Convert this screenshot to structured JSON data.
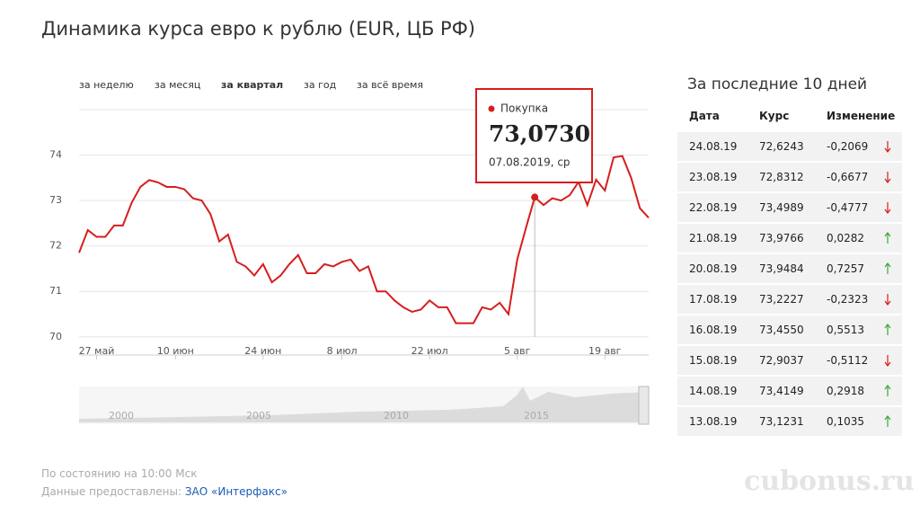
{
  "header": {
    "title": "Динамика курса евро к рублю (EUR, ЦБ РФ)"
  },
  "tabs": {
    "items": [
      "за неделю",
      "за месяц",
      "за квартал",
      "за год",
      "за всё время"
    ],
    "active": 2
  },
  "chart_data": {
    "type": "line",
    "categories": [
      null,
      null,
      "27 май",
      null,
      null,
      null,
      null,
      null,
      null,
      null,
      null,
      "10 июн",
      null,
      null,
      null,
      null,
      null,
      null,
      null,
      null,
      null,
      "24 июн",
      null,
      null,
      null,
      null,
      null,
      null,
      null,
      null,
      "8 июл",
      null,
      null,
      null,
      null,
      null,
      null,
      null,
      null,
      null,
      "22 июл",
      null,
      null,
      null,
      null,
      null,
      null,
      null,
      null,
      null,
      "5 авг",
      null,
      null,
      null,
      null,
      null,
      null,
      null,
      null,
      null,
      "19 авг",
      null,
      null,
      null,
      null,
      null
    ],
    "series": [
      {
        "name": "Покупка",
        "color": "#d61e1e",
        "values": [
          71.85,
          72.35,
          72.2,
          72.2,
          72.45,
          72.45,
          72.95,
          73.3,
          73.45,
          73.4,
          73.3,
          73.3,
          73.25,
          73.05,
          73.0,
          72.7,
          72.1,
          72.25,
          71.65,
          71.55,
          71.35,
          71.6,
          71.2,
          71.35,
          71.6,
          71.8,
          71.4,
          71.4,
          71.6,
          71.55,
          71.65,
          71.7,
          71.45,
          71.55,
          71.0,
          71.0,
          70.8,
          70.65,
          70.55,
          70.6,
          70.8,
          70.65,
          70.65,
          70.3,
          70.3,
          70.3,
          70.65,
          70.6,
          70.75,
          70.5,
          71.7,
          72.4,
          73.073,
          72.9,
          73.05,
          73.0,
          73.12,
          73.41,
          72.9,
          73.46,
          73.22,
          73.95,
          73.98,
          73.5,
          72.83,
          72.62
        ]
      }
    ],
    "ylim": [
      69.6,
      75.0
    ],
    "yticks": [
      70,
      71,
      72,
      73,
      74
    ],
    "grid": true,
    "tooltip": {
      "value": 73.073,
      "value_label": "73,0730",
      "date": "07.08.2019, ср"
    },
    "navigator": {
      "labels": [
        "2000",
        "2005",
        "2010",
        "2015"
      ]
    }
  },
  "table": {
    "title": "За последние 10 дней",
    "columns": [
      "Дата",
      "Курс",
      "Изменение"
    ],
    "rows": [
      [
        "24.08.19",
        "72,6243",
        "-0,2069"
      ],
      [
        "23.08.19",
        "72,8312",
        "-0,6677"
      ],
      [
        "22.08.19",
        "73,4989",
        "-0,4777"
      ],
      [
        "21.08.19",
        "73,9766",
        "0,0282"
      ],
      [
        "20.08.19",
        "73,9484",
        "0,7257"
      ],
      [
        "17.08.19",
        "73,2227",
        "-0,2323"
      ],
      [
        "16.08.19",
        "73,4550",
        "0,5513"
      ],
      [
        "15.08.19",
        "72,9037",
        "-0,5112"
      ],
      [
        "14.08.19",
        "73,4149",
        "0,2918"
      ],
      [
        "13.08.19",
        "73,1231",
        "0,1035"
      ]
    ]
  },
  "footer": {
    "status": "По состоянию на 10:00 Мск",
    "source_label": "Данные предоставлены:",
    "source_link": "ЗАО «Интерфакс»"
  },
  "watermark": "cubonus.ru"
}
